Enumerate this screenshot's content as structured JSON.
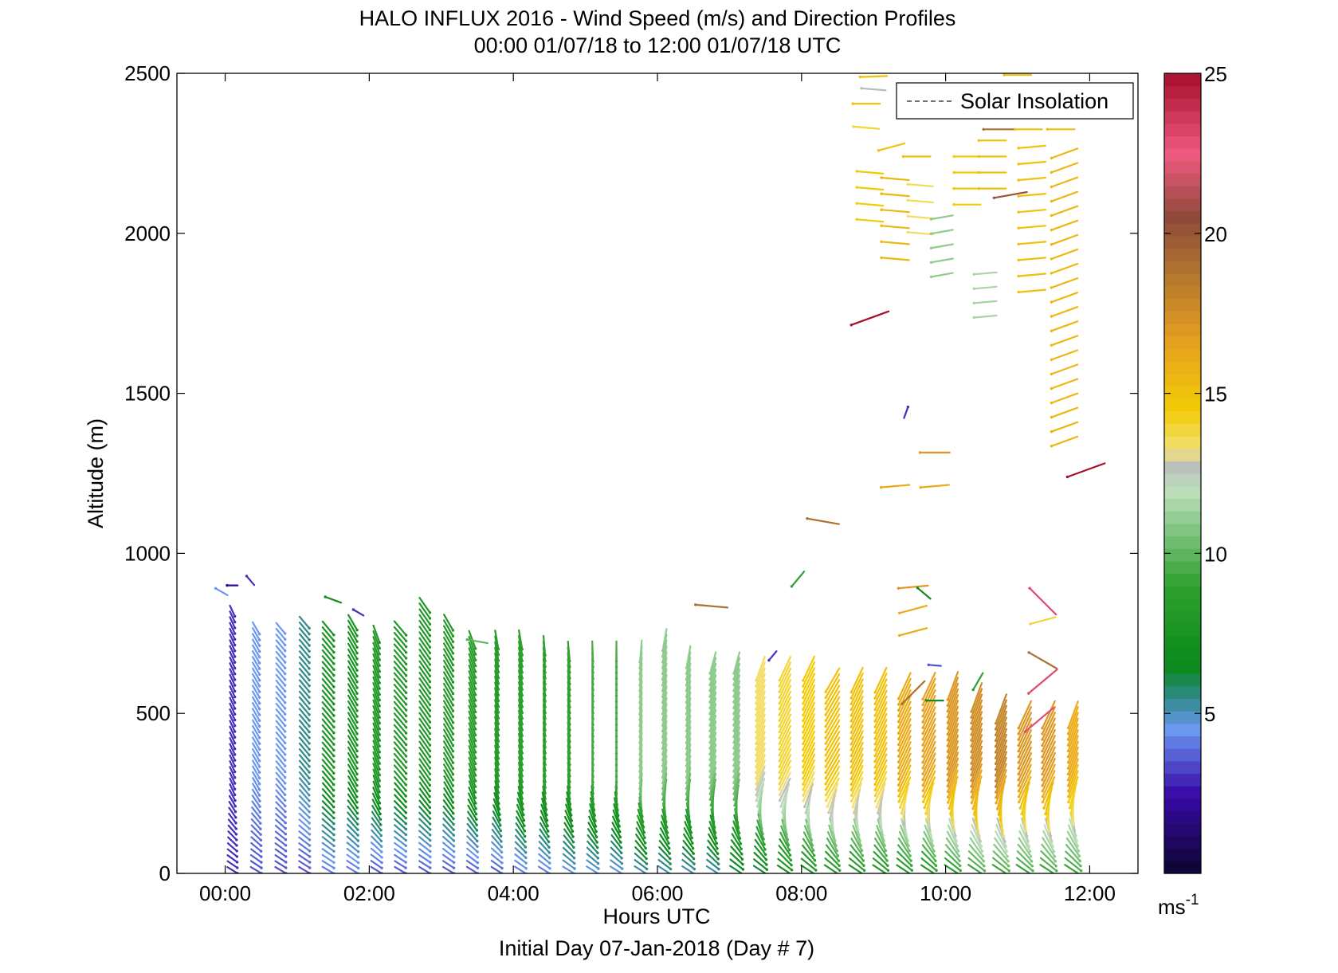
{
  "chart_data": {
    "type": "quiver",
    "title": "HALO INFLUX 2016 - Wind Speed (m/s) and Direction Profiles",
    "subtitle": "00:00 01/07/18 to 12:00 01/07/18  UTC",
    "xlabel": "Hours UTC",
    "footer": "Initial Day 07-Jan-2018 (Day # 7)",
    "ylabel": "Altitude (m)",
    "xlim": [
      -0.67,
      12.67
    ],
    "ylim": [
      0,
      2500
    ],
    "x_ticks": [
      {
        "value": 0,
        "label": "00:00"
      },
      {
        "value": 2,
        "label": "02:00"
      },
      {
        "value": 4,
        "label": "04:00"
      },
      {
        "value": 6,
        "label": "06:00"
      },
      {
        "value": 8,
        "label": "08:00"
      },
      {
        "value": 10,
        "label": "10:00"
      },
      {
        "value": 12,
        "label": "12:00"
      }
    ],
    "y_ticks": [
      0,
      500,
      1000,
      1500,
      2000,
      2500
    ],
    "legend": {
      "entries": [
        "Solar Insolation"
      ],
      "placement": "top-right"
    },
    "colorbar": {
      "min": 0,
      "max": 25,
      "ticks": [
        5,
        10,
        15,
        20,
        25
      ],
      "unit": "ms",
      "unit_sup": "-1",
      "stops": [
        {
          "v": 0.0,
          "c": "#0b0530"
        },
        {
          "v": 2.5,
          "c": "#3a0aa8"
        },
        {
          "v": 4.5,
          "c": "#6a98f0"
        },
        {
          "v": 5.5,
          "c": "#2f8a8a"
        },
        {
          "v": 6.5,
          "c": "#0a8a1a"
        },
        {
          "v": 9.0,
          "c": "#2ea02e"
        },
        {
          "v": 12.0,
          "c": "#bfe0bd"
        },
        {
          "v": 12.8,
          "c": "#bbbbbb"
        },
        {
          "v": 13.2,
          "c": "#f3e27a"
        },
        {
          "v": 14.5,
          "c": "#f2cb05"
        },
        {
          "v": 16.5,
          "c": "#e8a21e"
        },
        {
          "v": 19.0,
          "c": "#ac7030"
        },
        {
          "v": 20.5,
          "c": "#8f4a3a"
        },
        {
          "v": 22.5,
          "c": "#f05a80"
        },
        {
          "v": 25.0,
          "c": "#a50e2c"
        }
      ]
    },
    "profiles_low": {
      "times": [
        0.1,
        0.43,
        0.77,
        1.1,
        1.43,
        1.77,
        2.1,
        2.43,
        2.77,
        3.1,
        3.43,
        3.77,
        4.1,
        4.43,
        4.77,
        5.1,
        5.43,
        5.77,
        6.1,
        6.43,
        6.77,
        7.1,
        7.43,
        7.77,
        8.1,
        8.43,
        8.77,
        9.1,
        9.43,
        9.77,
        10.1,
        10.43,
        10.77,
        11.1,
        11.43,
        11.77
      ],
      "top_altitude_m": [
        830,
        780,
        780,
        800,
        780,
        790,
        760,
        780,
        840,
        790,
        740,
        740,
        740,
        720,
        710,
        700,
        700,
        700,
        740,
        680,
        670,
        660,
        650,
        650,
        640,
        620,
        620,
        620,
        600,
        600,
        600,
        560,
        520,
        500,
        500,
        500
      ],
      "speed_upper_ms": [
        3,
        4.5,
        4.5,
        5.5,
        7.5,
        7.5,
        8,
        8,
        8,
        8,
        8.5,
        8.5,
        9,
        9,
        9,
        9.5,
        9.5,
        11,
        11,
        11,
        11,
        11,
        13.5,
        14,
        14.5,
        15,
        15,
        15,
        16,
        16.5,
        17,
        17.5,
        18,
        17,
        17,
        16
      ],
      "speed_surface_ms": [
        3,
        3.5,
        3.5,
        3.5,
        4,
        4,
        3.5,
        3.5,
        3.5,
        3.5,
        3.5,
        3.5,
        4,
        4,
        4.5,
        4.5,
        4.5,
        5,
        5,
        5,
        5,
        6,
        6,
        7,
        7.5,
        8,
        8,
        8,
        8,
        8,
        8.5,
        9,
        9,
        9,
        9,
        9
      ],
      "direction_upper_deg": [
        335,
        330,
        320,
        320,
        320,
        330,
        340,
        320,
        325,
        330,
        340,
        350,
        350,
        355,
        355,
        358,
        0,
        5,
        10,
        10,
        15,
        15,
        20,
        25,
        25,
        30,
        25,
        25,
        25,
        25,
        20,
        20,
        20,
        25,
        25,
        20
      ]
    },
    "isolated_vectors": [
      {
        "t": 0.1,
        "alt": 900,
        "speed": 2,
        "dir": 90
      },
      {
        "t": -0.05,
        "alt": 880,
        "speed": 4.5,
        "dir": 120
      },
      {
        "t": 0.35,
        "alt": 915,
        "speed": 3,
        "dir": 140
      },
      {
        "t": 1.5,
        "alt": 855,
        "speed": 7,
        "dir": 110
      },
      {
        "t": 1.85,
        "alt": 815,
        "speed": 3,
        "dir": 120
      },
      {
        "t": 3.5,
        "alt": 725,
        "speed": 10,
        "dir": 100
      },
      {
        "t": 6.75,
        "alt": 835,
        "speed": 19,
        "dir": 95
      },
      {
        "t": 7.95,
        "alt": 920,
        "speed": 9,
        "dir": 40
      },
      {
        "t": 7.6,
        "alt": 680,
        "speed": 3,
        "dir": 40
      },
      {
        "t": 8.3,
        "alt": 1100,
        "speed": 19,
        "dir": 100
      },
      {
        "t": 8.95,
        "alt": 1735,
        "speed": 25,
        "dir": 70
      },
      {
        "t": 9.3,
        "alt": 1210,
        "speed": 16,
        "dir": 85
      },
      {
        "t": 9.45,
        "alt": 1440,
        "speed": 3,
        "dir": 200
      },
      {
        "t": 9.55,
        "alt": 895,
        "speed": 17,
        "dir": 85
      },
      {
        "t": 9.7,
        "alt": 875,
        "speed": 7,
        "dir": 130
      },
      {
        "t": 9.55,
        "alt": 825,
        "speed": 16,
        "dir": 75
      },
      {
        "t": 9.55,
        "alt": 755,
        "speed": 16,
        "dir": 75
      },
      {
        "t": 9.85,
        "alt": 650,
        "speed": 3.5,
        "dir": 95
      },
      {
        "t": 9.55,
        "alt": 565,
        "speed": 19,
        "dir": 45
      },
      {
        "t": 9.85,
        "alt": 540,
        "speed": 7,
        "dir": 90
      },
      {
        "t": 9.85,
        "alt": 1315,
        "speed": 17,
        "dir": 90
      },
      {
        "t": 9.85,
        "alt": 1210,
        "speed": 16,
        "dir": 85
      },
      {
        "t": 10.45,
        "alt": 600,
        "speed": 9,
        "dir": 30
      },
      {
        "t": 11.35,
        "alt": 850,
        "speed": 23,
        "dir": 135
      },
      {
        "t": 11.35,
        "alt": 790,
        "speed": 14,
        "dir": 75
      },
      {
        "t": 11.35,
        "alt": 665,
        "speed": 19,
        "dir": 120
      },
      {
        "t": 11.35,
        "alt": 600,
        "speed": 23,
        "dir": 50
      },
      {
        "t": 11.3,
        "alt": 480,
        "speed": 23,
        "dir": 50
      },
      {
        "t": 11.95,
        "alt": 1260,
        "speed": 25,
        "dir": 70
      }
    ],
    "upper_vectors": [
      {
        "t": 9.0,
        "alt": 2490,
        "speed": 15,
        "dir": 88
      },
      {
        "t": 9.0,
        "alt": 2450,
        "speed": 12.8,
        "dir": 95
      },
      {
        "t": 8.9,
        "alt": 2405,
        "speed": 15,
        "dir": 90
      },
      {
        "t": 8.9,
        "alt": 2330,
        "speed": 14,
        "dir": 95
      },
      {
        "t": 9.25,
        "alt": 2270,
        "speed": 15,
        "dir": 75
      },
      {
        "t": 9.6,
        "alt": 2240,
        "speed": 15,
        "dir": 90
      },
      {
        "t": 11.0,
        "alt": 2495,
        "speed": 15,
        "dir": 90
      },
      {
        "t": 10.75,
        "alt": 2325,
        "speed": 19,
        "dir": 90
      },
      {
        "t": 11.15,
        "alt": 2325,
        "speed": 15,
        "dir": 90
      },
      {
        "t": 11.6,
        "alt": 2325,
        "speed": 15,
        "dir": 90
      }
    ],
    "upper_grid": {
      "columns": [
        {
          "t": 8.95,
          "alt_min": 2040,
          "alt_max": 2190,
          "step_m": 50,
          "speed": 14.5,
          "dir": 95
        },
        {
          "t": 9.3,
          "alt_min": 1920,
          "alt_max": 2190,
          "step_m": 50,
          "speed": 15.5,
          "dir": 95
        },
        {
          "t": 9.65,
          "alt_min": 2000,
          "alt_max": 2190,
          "step_m": 50,
          "speed": 13.5,
          "dir": 95
        },
        {
          "t": 9.95,
          "alt_min": 1870,
          "alt_max": 2050,
          "step_m": 45,
          "speed": 11,
          "dir": 80
        },
        {
          "t": 10.3,
          "alt_min": 2090,
          "alt_max": 2240,
          "step_m": 50,
          "speed": 14.5,
          "dir": 90
        },
        {
          "t": 10.55,
          "alt_min": 1740,
          "alt_max": 1910,
          "step_m": 45,
          "speed": 11.5,
          "dir": 85
        },
        {
          "t": 10.65,
          "alt_min": 2140,
          "alt_max": 2290,
          "step_m": 50,
          "speed": 15,
          "dir": 90
        },
        {
          "t": 10.9,
          "alt_min": 2120,
          "alt_max": 2120,
          "step_m": 50,
          "speed": 20,
          "dir": 80
        },
        {
          "t": 11.2,
          "alt_min": 1820,
          "alt_max": 2290,
          "step_m": 50,
          "speed": 15,
          "dir": 85
        },
        {
          "t": 11.65,
          "alt_min": 1350,
          "alt_max": 2290,
          "step_m": 45,
          "speed": 15.5,
          "dir": 70
        }
      ]
    }
  }
}
